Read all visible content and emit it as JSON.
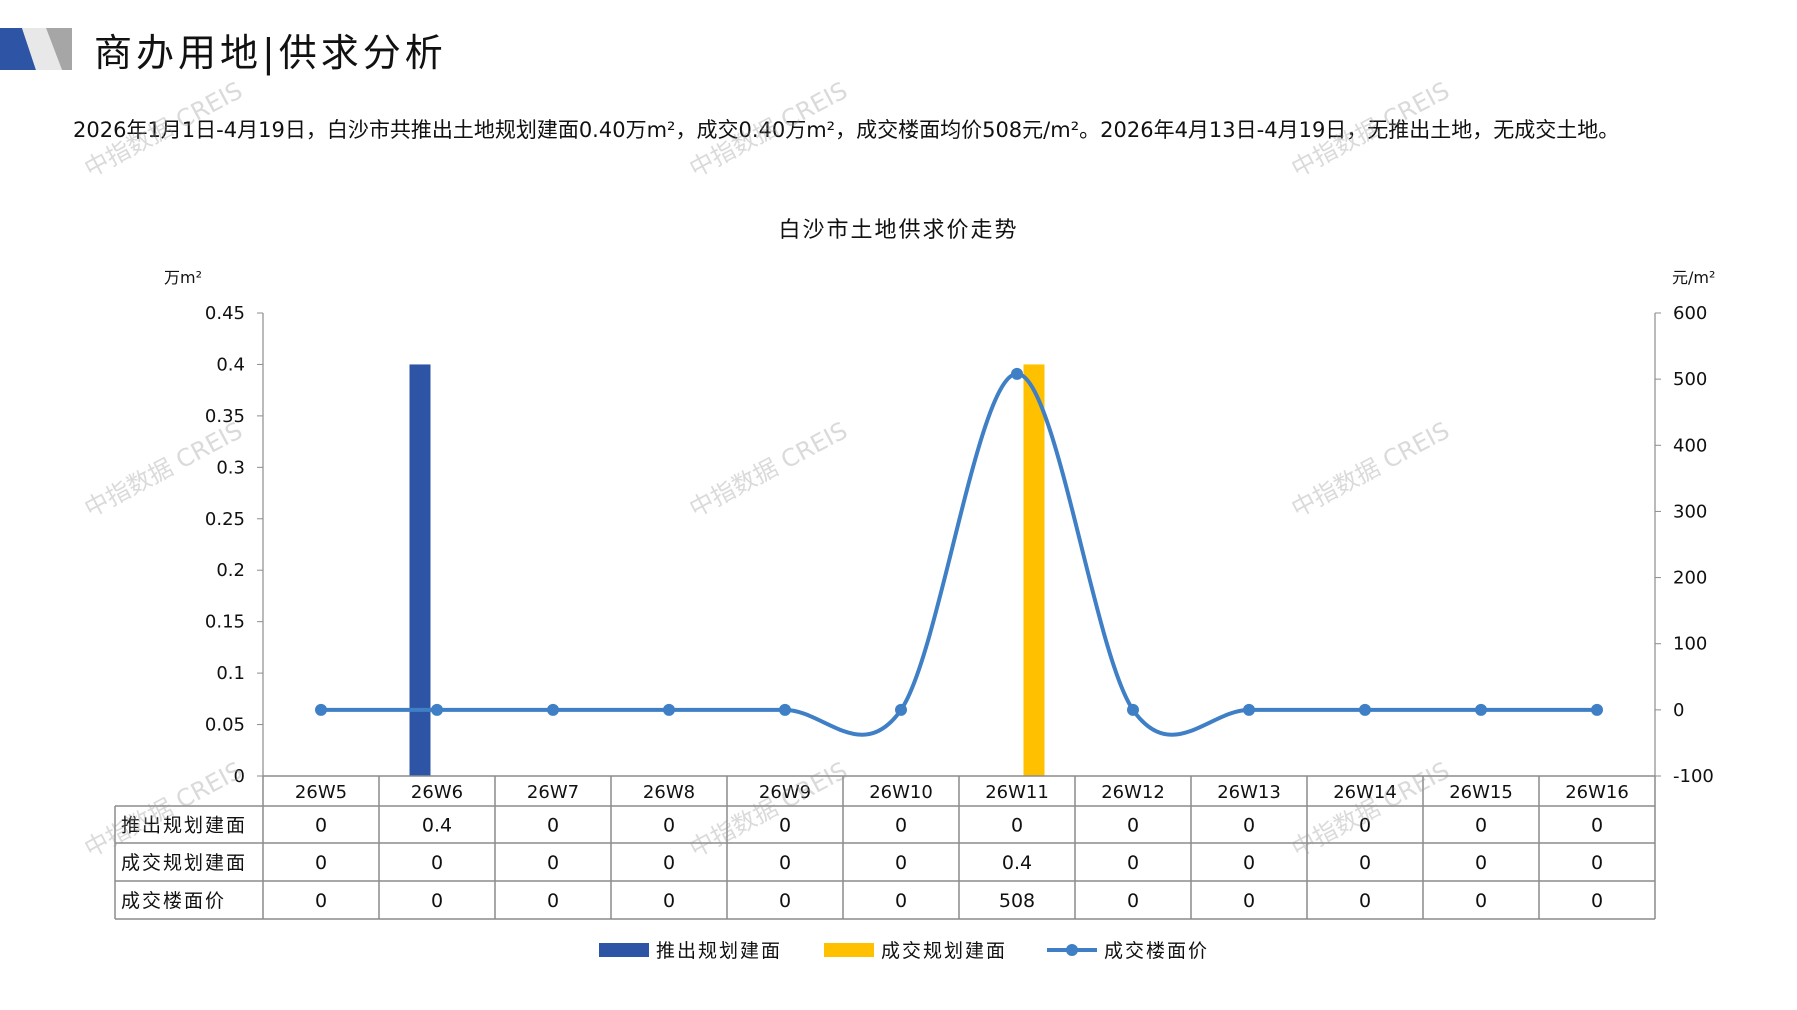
{
  "header": {
    "title": "商办用地|供求分析",
    "summary": "2026年1月1日-4月19日，白沙市共推出土地规划建面0.40万m²，成交0.40万m²，成交楼面均价508元/m²。2026年4月13日-4月19日，无推出土地，无成交土地。"
  },
  "watermark": "中指数据 CREIS",
  "chart_data": {
    "type": "bar+line",
    "title": "白沙市土地供求价走势",
    "y_left_label": "万m²",
    "y_right_label": "元/m²",
    "y_left_range": [
      0,
      0.45
    ],
    "y_left_ticks": [
      "0.45",
      "0.4",
      "0.35",
      "0.3",
      "0.25",
      "0.2",
      "0.15",
      "0.1",
      "0.05",
      "0"
    ],
    "y_right_range": [
      -100,
      600
    ],
    "y_right_ticks": [
      "600",
      "500",
      "400",
      "300",
      "200",
      "100",
      "0",
      "-100"
    ],
    "categories": [
      "26W5",
      "26W6",
      "26W7",
      "26W8",
      "26W9",
      "26W10",
      "26W11",
      "26W12",
      "26W13",
      "26W14",
      "26W15",
      "26W16"
    ],
    "series": [
      {
        "name": "推出规划建面",
        "type": "bar",
        "axis": "left",
        "color": "#2E55A5",
        "values": [
          0,
          0.4,
          0,
          0,
          0,
          0,
          0,
          0,
          0,
          0,
          0,
          0
        ],
        "labels": [
          "0",
          "0.4",
          "0",
          "0",
          "0",
          "0",
          "0",
          "0",
          "0",
          "0",
          "0",
          "0"
        ]
      },
      {
        "name": "成交规划建面",
        "type": "bar",
        "axis": "left",
        "color": "#FFC000",
        "values": [
          0,
          0,
          0,
          0,
          0,
          0,
          0.4,
          0,
          0,
          0,
          0,
          0
        ],
        "labels": [
          "0",
          "0",
          "0",
          "0",
          "0",
          "0",
          "0.4",
          "0",
          "0",
          "0",
          "0",
          "0"
        ]
      },
      {
        "name": "成交楼面价",
        "type": "line",
        "axis": "right",
        "color": "#3F7FC6",
        "smooth": true,
        "values": [
          0,
          0,
          0,
          0,
          0,
          0,
          508,
          0,
          0,
          0,
          0,
          0
        ],
        "labels": [
          "0",
          "0",
          "0",
          "0",
          "0",
          "0",
          "508",
          "0",
          "0",
          "0",
          "0",
          "0"
        ]
      }
    ],
    "legend": "bottom",
    "data_table": true,
    "grid": false
  }
}
